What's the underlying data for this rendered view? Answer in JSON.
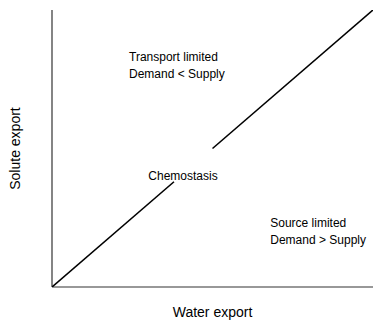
{
  "chart_data": {
    "type": "line",
    "xlabel": "Water export",
    "ylabel": "Solute export",
    "xlim": [
      0,
      1
    ],
    "ylim": [
      0,
      1
    ],
    "tick_labels": false,
    "grid": false,
    "series": [
      {
        "color": "black",
        "x": [
          0.0,
          0.38
        ],
        "values": [
          0.0,
          0.38
        ]
      },
      {
        "color": "black",
        "x": [
          0.5,
          1.0
        ],
        "values": [
          0.5,
          1.0
        ]
      }
    ],
    "annotations": [
      {
        "text": "Chemostasis",
        "x": 0.3,
        "y": 0.42
      },
      {
        "text": "Transport limited\nDemand < Supply",
        "x": 0.24,
        "y": 0.8
      },
      {
        "text": "Source limited\nDemand > Supply",
        "x": 0.68,
        "y": 0.2
      }
    ]
  }
}
